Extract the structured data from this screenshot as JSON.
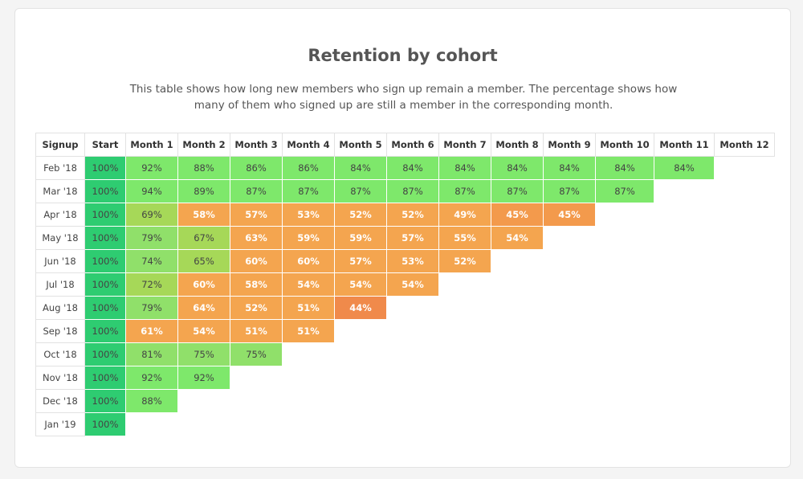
{
  "title": "Retention by cohort",
  "subtitle": "This table shows how long new members who sign up remain a member. The percentage shows how many of them who signed up are still a member in the corresponding month.",
  "chart_data": {
    "type": "table",
    "title": "Retention by cohort",
    "columns": [
      "Signup",
      "Start",
      "Month 1",
      "Month 2",
      "Month 3",
      "Month 4",
      "Month 5",
      "Month 6",
      "Month 7",
      "Month 8",
      "Month 9",
      "Month 10",
      "Month 11",
      "Month 12"
    ],
    "rows": [
      {
        "signup": "Feb '18",
        "values": [
          100,
          92,
          88,
          86,
          86,
          84,
          84,
          84,
          84,
          84,
          84,
          84
        ]
      },
      {
        "signup": "Mar '18",
        "values": [
          100,
          94,
          89,
          87,
          87,
          87,
          87,
          87,
          87,
          87,
          87
        ]
      },
      {
        "signup": "Apr '18",
        "values": [
          100,
          69,
          58,
          57,
          53,
          52,
          52,
          49,
          45,
          45
        ]
      },
      {
        "signup": "May '18",
        "values": [
          100,
          79,
          67,
          63,
          59,
          59,
          57,
          55,
          54
        ]
      },
      {
        "signup": "Jun '18",
        "values": [
          100,
          74,
          65,
          60,
          60,
          57,
          53,
          52
        ]
      },
      {
        "signup": "Jul '18",
        "values": [
          100,
          72,
          60,
          58,
          54,
          54,
          54
        ]
      },
      {
        "signup": "Aug '18",
        "values": [
          100,
          79,
          64,
          52,
          51,
          44
        ]
      },
      {
        "signup": "Sep '18",
        "values": [
          100,
          61,
          54,
          51,
          51
        ]
      },
      {
        "signup": "Oct '18",
        "values": [
          100,
          81,
          75,
          75
        ]
      },
      {
        "signup": "Nov '18",
        "values": [
          100,
          92,
          92
        ]
      },
      {
        "signup": "Dec '18",
        "values": [
          100,
          88
        ]
      },
      {
        "signup": "Jan '19",
        "values": [
          100
        ]
      }
    ],
    "value_suffix": "%"
  }
}
